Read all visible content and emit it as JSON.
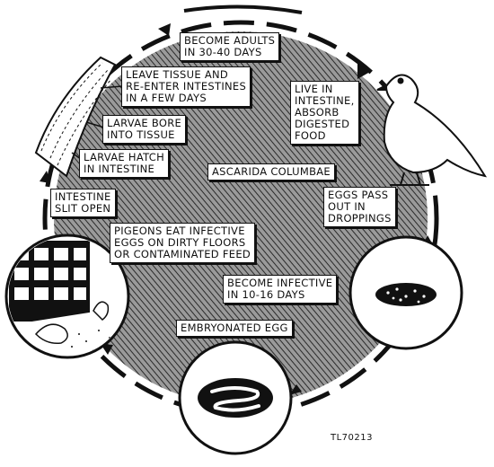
{
  "diagram": {
    "title": "ASCARIDA COLUMBAE",
    "stages": {
      "become_adults": "BECOME ADULTS\nIN 30-40 DAYS",
      "live_in_intestine": "LIVE IN\nINTESTINE,\nABSORB\nDIGESTED\nFOOD",
      "eggs_pass": "EGGS PASS\nOUT IN\nDROPPINGS",
      "become_infective": "BECOME INFECTIVE\nIN 10-16 DAYS",
      "embryonated_egg": "EMBRYONATED EGG",
      "pigeons_eat": "PIGEONS EAT INFECTIVE\nEGGS ON DIRTY FLOORS\nOR CONTAMINATED FEED",
      "intestine_slit": "INTESTINE\nSLIT OPEN",
      "larvae_hatch": "LARVAE HATCH\nIN INTESTINE",
      "larvae_bore": "LARVAE BORE\nINTO TISSUE",
      "leave_tissue": "LEAVE TISSUE AND\nRE-ENTER INTESTINES\nIN A FEW DAYS"
    },
    "figure_code": "TL70213",
    "icons": [
      "pigeon-icon",
      "intestine-icon",
      "dropping-egg-icon",
      "embryonated-egg-icon",
      "pigeon-coop-icon"
    ],
    "colors": {
      "ink": "#111111",
      "hatch_bg": "#8a8a8a",
      "paper": "#ffffff"
    }
  }
}
